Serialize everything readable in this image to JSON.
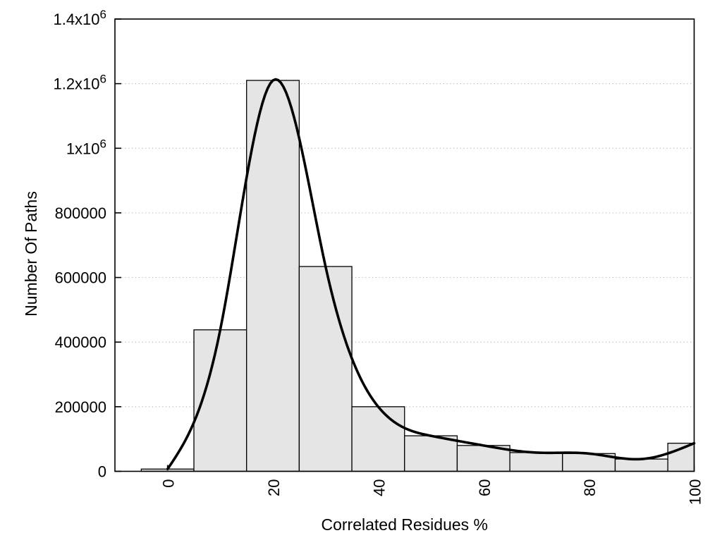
{
  "chart_data": {
    "type": "bar",
    "subtype": "histogram-with-spline-curve",
    "title": "",
    "xlabel": "Correlated Residues %",
    "ylabel": "Number Of Paths",
    "xlim": [
      -10,
      100
    ],
    "ylim": [
      0,
      1400000
    ],
    "bin_width": 10,
    "categories": [
      0,
      10,
      20,
      30,
      40,
      50,
      60,
      70,
      80,
      90,
      100
    ],
    "values": [
      7000,
      438000,
      1210000,
      634000,
      200000,
      110000,
      80000,
      58000,
      55000,
      38000,
      87000
    ],
    "series": [
      {
        "name": "path-count-histogram",
        "type": "bar",
        "values": [
          7000,
          438000,
          1210000,
          634000,
          200000,
          110000,
          80000,
          58000,
          55000,
          38000,
          87000
        ]
      },
      {
        "name": "smoothed-spline-curve",
        "type": "line",
        "x": [
          0,
          10,
          20,
          30,
          40,
          50,
          60,
          70,
          80,
          90,
          100
        ],
        "y": [
          7000,
          438000,
          1210000,
          634000,
          200000,
          110000,
          80000,
          58000,
          55000,
          38000,
          87000
        ]
      }
    ],
    "x_ticks": [
      {
        "value": 0,
        "label": "0"
      },
      {
        "value": 20,
        "label": "20"
      },
      {
        "value": 40,
        "label": "40"
      },
      {
        "value": 60,
        "label": "60"
      },
      {
        "value": 80,
        "label": "80"
      },
      {
        "value": 100,
        "label": "100"
      }
    ],
    "y_ticks": [
      {
        "value": 0,
        "label": "0"
      },
      {
        "value": 200000,
        "label": "200000"
      },
      {
        "value": 400000,
        "label": "400000"
      },
      {
        "value": 600000,
        "label": "600000"
      },
      {
        "value": 800000,
        "label": "800000"
      },
      {
        "value": 1000000,
        "label": "1x10^6"
      },
      {
        "value": 1200000,
        "label": "1.2x10^6"
      },
      {
        "value": 1400000,
        "label": "1.4x10^6"
      }
    ],
    "x_tick_label_rotation_deg": -90,
    "grid": {
      "horizontal": true,
      "vertical": false,
      "style": "dotted"
    },
    "legend": "none",
    "colors": {
      "background": "#ffffff",
      "bar_fill": "#e5e5e5",
      "bar_border": "#000000",
      "curve": "#000000",
      "grid": "#b8b8b8",
      "axis": "#000000",
      "text": "#000000"
    }
  }
}
